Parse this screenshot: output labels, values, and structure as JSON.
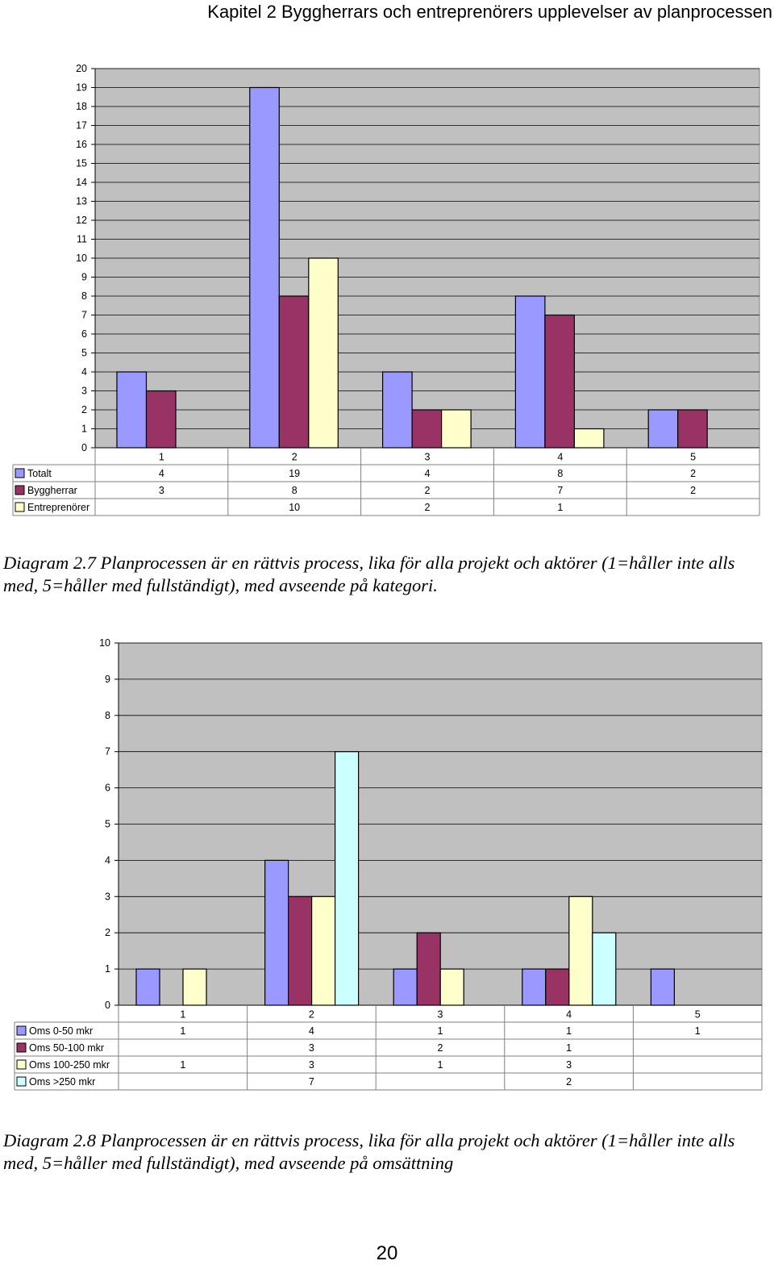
{
  "header": {
    "title": "Kapitel 2 Byggherrars och entreprenörers upplevelser av planprocessen"
  },
  "colors": {
    "plot_bg": "#c0c0c0",
    "grid": "#000000"
  },
  "chart_data": [
    {
      "type": "bar",
      "categories": [
        "1",
        "2",
        "3",
        "4",
        "5"
      ],
      "ylim": [
        0,
        20
      ],
      "yticks": [
        "0",
        "1",
        "2",
        "3",
        "4",
        "5",
        "6",
        "7",
        "8",
        "9",
        "10",
        "11",
        "12",
        "13",
        "14",
        "15",
        "16",
        "17",
        "18",
        "19",
        "20"
      ],
      "grid": true,
      "legend": "table-below",
      "series": [
        {
          "name": "Totalt",
          "color": "#9999ff",
          "values": [
            4,
            19,
            4,
            8,
            2
          ],
          "labels": [
            "4",
            "19",
            "4",
            "8",
            "2"
          ]
        },
        {
          "name": "Byggherrar",
          "color": "#993366",
          "values": [
            3,
            8,
            2,
            7,
            2
          ],
          "labels": [
            "3",
            "8",
            "2",
            "7",
            "2"
          ]
        },
        {
          "name": "Entreprenörer",
          "color": "#ffffcc",
          "values": [
            null,
            10,
            2,
            1,
            null
          ],
          "labels": [
            "",
            "10",
            "2",
            "1",
            ""
          ]
        }
      ]
    },
    {
      "type": "bar",
      "categories": [
        "1",
        "2",
        "3",
        "4",
        "5"
      ],
      "ylim": [
        0,
        10
      ],
      "yticks": [
        "0",
        "1",
        "2",
        "3",
        "4",
        "5",
        "6",
        "7",
        "8",
        "9",
        "10"
      ],
      "grid": true,
      "legend": "table-below",
      "series": [
        {
          "name": "Oms 0-50 mkr",
          "color": "#9999ff",
          "values": [
            1,
            4,
            1,
            1,
            1
          ],
          "labels": [
            "1",
            "4",
            "1",
            "1",
            "1"
          ]
        },
        {
          "name": "Oms 50-100 mkr",
          "color": "#993366",
          "values": [
            null,
            3,
            2,
            1,
            null
          ],
          "labels": [
            "",
            "3",
            "2",
            "1",
            ""
          ]
        },
        {
          "name": "Oms 100-250 mkr",
          "color": "#ffffcc",
          "values": [
            1,
            3,
            1,
            3,
            null
          ],
          "labels": [
            "1",
            "3",
            "1",
            "3",
            ""
          ]
        },
        {
          "name": "Oms >250 mkr",
          "color": "#ccffff",
          "values": [
            null,
            7,
            null,
            2,
            null
          ],
          "labels": [
            "",
            "7",
            "",
            "2",
            ""
          ]
        }
      ]
    }
  ],
  "captions": [
    "Diagram 2.7 Planprocessen är en rättvis process, lika för alla projekt och aktörer (1=håller inte alls med, 5=håller med fullständigt), med avseende på kategori.",
    "Diagram 2.8 Planprocessen är en rättvis process, lika för alla projekt och aktörer (1=håller inte alls med, 5=håller med fullständigt), med avseende på omsättning"
  ],
  "page_number": "20"
}
